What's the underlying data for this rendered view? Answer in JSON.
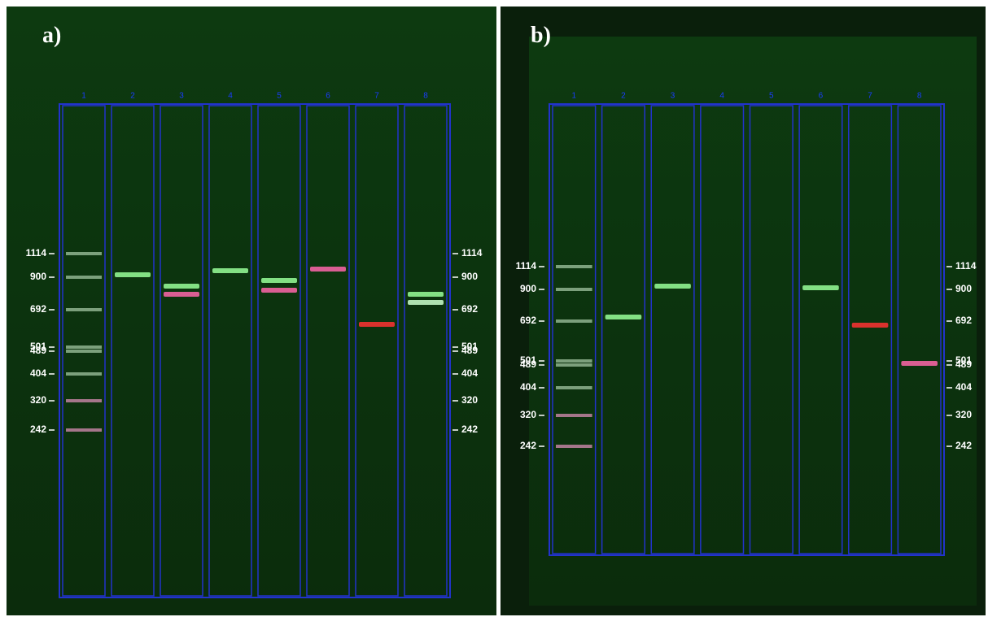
{
  "panels": [
    {
      "label": "a)",
      "markers": [
        "1114",
        "900",
        "692",
        "501",
        "489",
        "404",
        "320",
        "242"
      ],
      "lanes": [
        "1",
        "2",
        "3",
        "4",
        "5",
        "6",
        "7",
        "8"
      ]
    },
    {
      "label": "b)",
      "markers": [
        "1114",
        "900",
        "692",
        "501",
        "489",
        "404",
        "320",
        "242"
      ],
      "lanes": [
        "1",
        "2",
        "3",
        "4",
        "5",
        "6",
        "7",
        "8"
      ]
    }
  ]
}
